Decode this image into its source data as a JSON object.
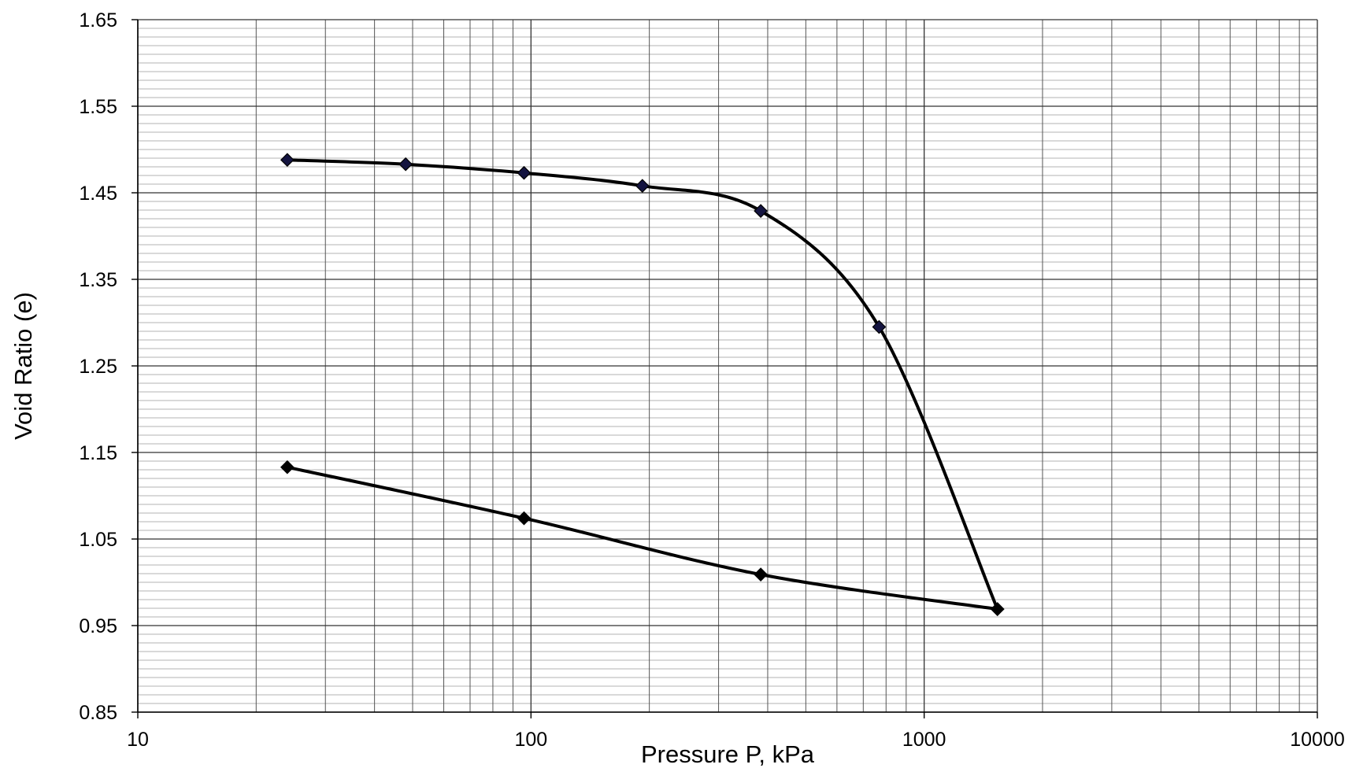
{
  "chart_data": {
    "type": "line",
    "title": "",
    "xlabel": "Pressure P, kPa",
    "ylabel": "Void Ratio (e)",
    "x_scale": "log",
    "xlim": [
      10,
      10000
    ],
    "ylim": [
      0.85,
      1.65
    ],
    "grid": true,
    "legend": "none",
    "x_tick_labels": [
      "10",
      "100",
      "1000",
      "10000"
    ],
    "x_tick_values": [
      10,
      100,
      1000,
      10000
    ],
    "y_tick_labels": [
      "0.85",
      "0.95",
      "1.05",
      "1.15",
      "1.25",
      "1.35",
      "1.45",
      "1.55",
      "1.65"
    ],
    "y_tick_values": [
      0.85,
      0.95,
      1.05,
      1.15,
      1.25,
      1.35,
      1.45,
      1.55,
      1.65
    ],
    "series": [
      {
        "x": [
          24,
          48,
          96,
          192,
          384,
          768,
          1536
        ],
        "y": [
          1.488,
          1.483,
          1.473,
          1.458,
          1.429,
          1.295,
          0.969
        ],
        "color": "#000000",
        "marker": "diamond",
        "marker_fill": "#141440"
      },
      {
        "x": [
          1536,
          384,
          96,
          24
        ],
        "y": [
          0.969,
          1.009,
          1.074,
          1.133
        ],
        "color": "#000000",
        "marker": "diamond",
        "marker_fill": "#000000"
      }
    ]
  }
}
